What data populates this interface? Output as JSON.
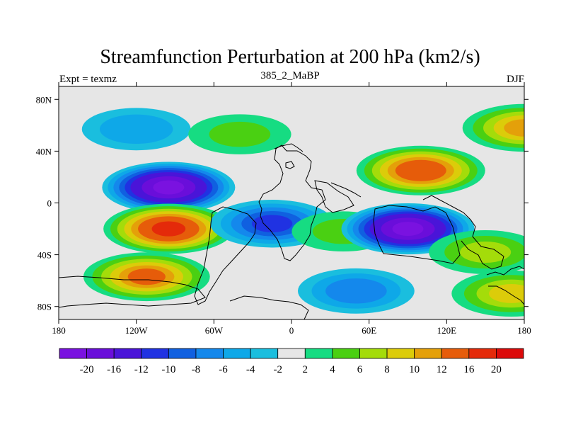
{
  "chart_data": {
    "type": "heatmap",
    "title": "Streamfunction Perturbation at 200 hPa (km2/s)",
    "subtitle": "385_2_MaBP",
    "left_string": "Expt = texmz",
    "right_string": "DJF",
    "xlabel": "",
    "ylabel": "",
    "xlim": [
      -180,
      180
    ],
    "ylim": [
      -90,
      90
    ],
    "x_ticks": [
      {
        "value": -180,
        "label": "180"
      },
      {
        "value": -120,
        "label": "120W"
      },
      {
        "value": -60,
        "label": "60W"
      },
      {
        "value": 0,
        "label": "0"
      },
      {
        "value": 60,
        "label": "60E"
      },
      {
        "value": 120,
        "label": "120E"
      },
      {
        "value": 180,
        "label": "180"
      }
    ],
    "y_ticks": [
      {
        "value": 80,
        "label": "80N"
      },
      {
        "value": 40,
        "label": "40N"
      },
      {
        "value": 0,
        "label": "0"
      },
      {
        "value": -40,
        "label": "40S"
      },
      {
        "value": -80,
        "label": "80S"
      }
    ],
    "colorbar": {
      "labels": [
        "-20",
        "-16",
        "-12",
        "-10",
        "-8",
        "-6",
        "-4",
        "-2",
        "2",
        "4",
        "6",
        "8",
        "10",
        "12",
        "16",
        "20"
      ],
      "colors": [
        "#7A12E0",
        "#6A0EDA",
        "#4A14D8",
        "#2032E2",
        "#1060E0",
        "#1488EC",
        "#0EA8E8",
        "#1ABEDE",
        "#E6E6E6",
        "#16DC82",
        "#4AD012",
        "#A4DC0A",
        "#DCCC0A",
        "#E4A00A",
        "#E65C0A",
        "#E42A0A",
        "#DC0A0A"
      ]
    },
    "field_features": [
      {
        "name": "high-north-pacific-west",
        "lon": 180,
        "lat": 58,
        "value": 10
      },
      {
        "name": "low-north-pacific",
        "lon": -120,
        "lat": 57,
        "value": -5
      },
      {
        "name": "high-north-america",
        "lon": -40,
        "lat": 53,
        "value": 4
      },
      {
        "name": "low-tropical-east-pacific",
        "lon": -95,
        "lat": 12,
        "value": -20
      },
      {
        "name": "high-southern-east-pacific",
        "lon": -95,
        "lat": -20,
        "value": 16
      },
      {
        "name": "high-far-southeast-pacific",
        "lon": -112,
        "lat": -57,
        "value": 12
      },
      {
        "name": "low-south-atlantic",
        "lon": -15,
        "lat": -16,
        "value": -10
      },
      {
        "name": "high-west-africa",
        "lon": 40,
        "lat": -22,
        "value": 4
      },
      {
        "name": "high-asia",
        "lon": 100,
        "lat": 25,
        "value": 14
      },
      {
        "name": "low-indian-ocean",
        "lon": 90,
        "lat": -20,
        "value": -20
      },
      {
        "name": "low-southern-ocean",
        "lon": 50,
        "lat": -68,
        "value": -7
      },
      {
        "name": "high-south-pacific",
        "lon": 150,
        "lat": -38,
        "value": 6
      },
      {
        "name": "high-far-south-pacific",
        "lon": 170,
        "lat": -70,
        "value": 8
      }
    ]
  }
}
